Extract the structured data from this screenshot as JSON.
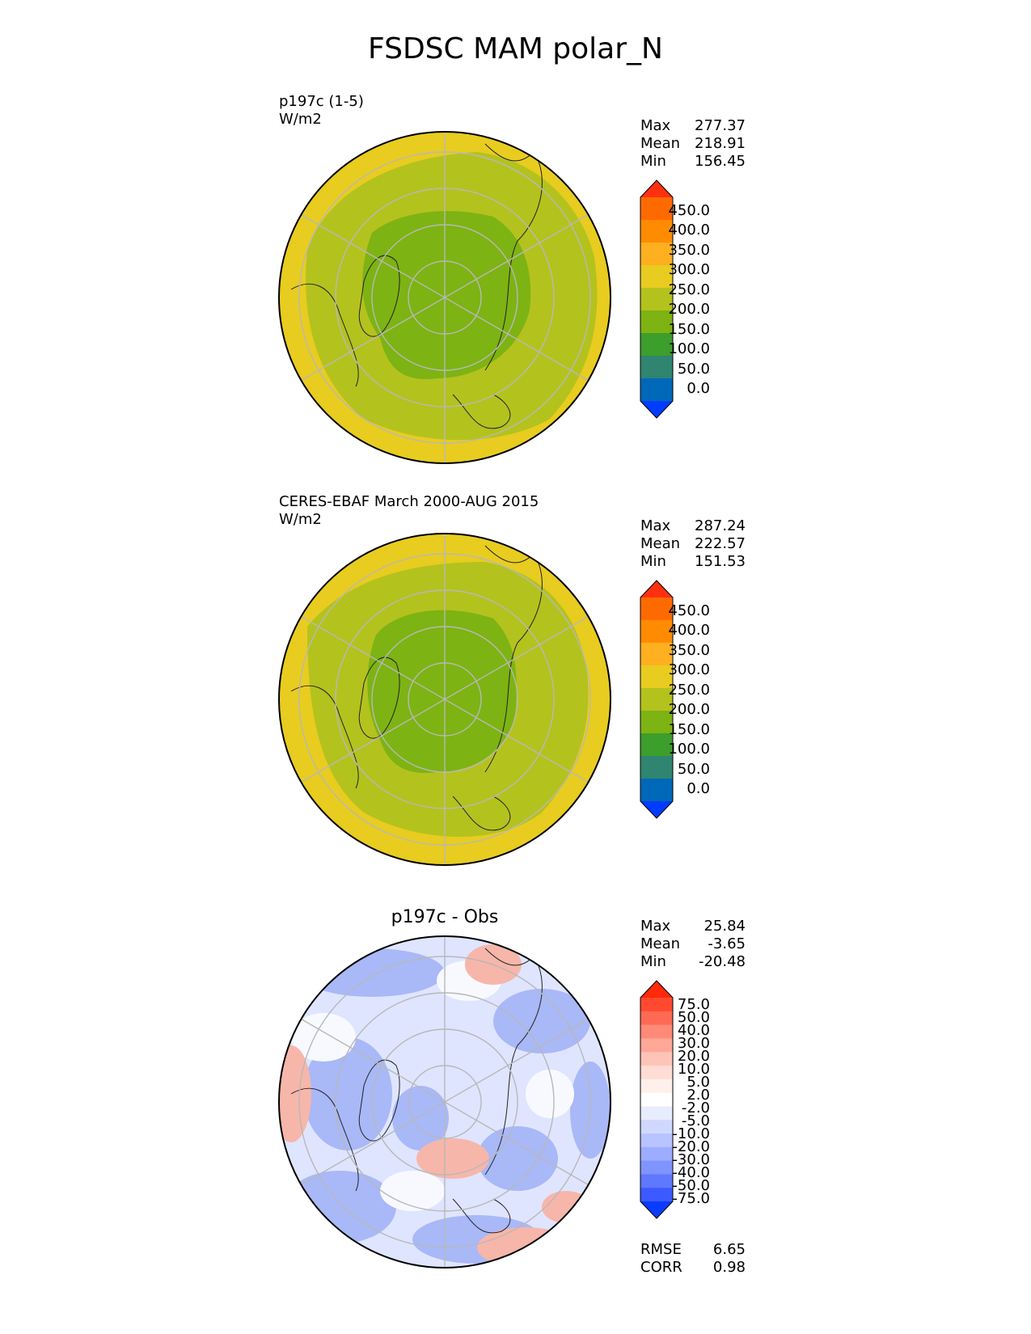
{
  "title": "FSDSC MAM polar_N",
  "panels": [
    {
      "id": "p1",
      "heading": "",
      "label_line1": "p197c (1-5)",
      "label_line2": "W/m2",
      "stats": [
        {
          "name": "Max",
          "value": "277.37"
        },
        {
          "name": "Mean",
          "value": "218.91"
        },
        {
          "name": "Min",
          "value": "156.45"
        }
      ],
      "colorbar": {
        "labels": [
          "450.0",
          "400.0",
          "350.0",
          "300.0",
          "250.0",
          "200.0",
          "150.0",
          "100.0",
          "50.0",
          "0.0"
        ],
        "colors": [
          "#ff3010",
          "#ff6a00",
          "#ff8c00",
          "#ffb020",
          "#e8cc20",
          "#b4c21e",
          "#7db313",
          "#3c9e2b",
          "#2f8570",
          "#0068b8",
          "#003cff"
        ]
      },
      "map_colors": {
        "outer": "#e8cc20",
        "mid": "#b4c21e",
        "inner": "#7db313"
      }
    },
    {
      "id": "p2",
      "heading": "",
      "label_line1": "CERES-EBAF March 2000-AUG 2015",
      "label_line2": "W/m2",
      "stats": [
        {
          "name": "Max",
          "value": "287.24"
        },
        {
          "name": "Mean",
          "value": "222.57"
        },
        {
          "name": "Min",
          "value": "151.53"
        }
      ],
      "colorbar": {
        "labels": [
          "450.0",
          "400.0",
          "350.0",
          "300.0",
          "250.0",
          "200.0",
          "150.0",
          "100.0",
          "50.0",
          "0.0"
        ],
        "colors": [
          "#ff3010",
          "#ff6a00",
          "#ff8c00",
          "#ffb020",
          "#e8cc20",
          "#b4c21e",
          "#7db313",
          "#3c9e2b",
          "#2f8570",
          "#0068b8",
          "#003cff"
        ]
      },
      "map_colors": {
        "outer": "#e8cc20",
        "mid": "#b4c21e",
        "inner": "#7db313"
      }
    },
    {
      "id": "p3",
      "heading": "p197c - Obs",
      "label_line1": "",
      "label_line2": "",
      "stats": [
        {
          "name": "Max",
          "value": "25.84"
        },
        {
          "name": "Mean",
          "value": "-3.65"
        },
        {
          "name": "Min",
          "value": "-20.48"
        }
      ],
      "colorbar": {
        "labels": [
          "75.0",
          "50.0",
          "40.0",
          "30.0",
          "20.0",
          "10.0",
          "5.0",
          "2.0",
          "-2.0",
          "-5.0",
          "-10.0",
          "-20.0",
          "-30.0",
          "-40.0",
          "-50.0",
          "-75.0"
        ],
        "colors": [
          "#ff2a0a",
          "#ff4a30",
          "#ff6a54",
          "#ff8a78",
          "#ffa898",
          "#ffc4b8",
          "#ffdcd4",
          "#fff0ec",
          "#ffffff",
          "#e8ecff",
          "#d0d8ff",
          "#b8c4ff",
          "#9cacff",
          "#8094ff",
          "#6078ff",
          "#3c5aff",
          "#0a3cff"
        ]
      },
      "extra_stats": [
        {
          "name": "RMSE",
          "value": "6.65"
        },
        {
          "name": "CORR",
          "value": "0.98"
        }
      ],
      "map_colors": {
        "base": "#dfe5ff",
        "blue": "#a9b8f7",
        "red": "#f7b6aa",
        "white": "#f8f9ff"
      }
    }
  ]
}
